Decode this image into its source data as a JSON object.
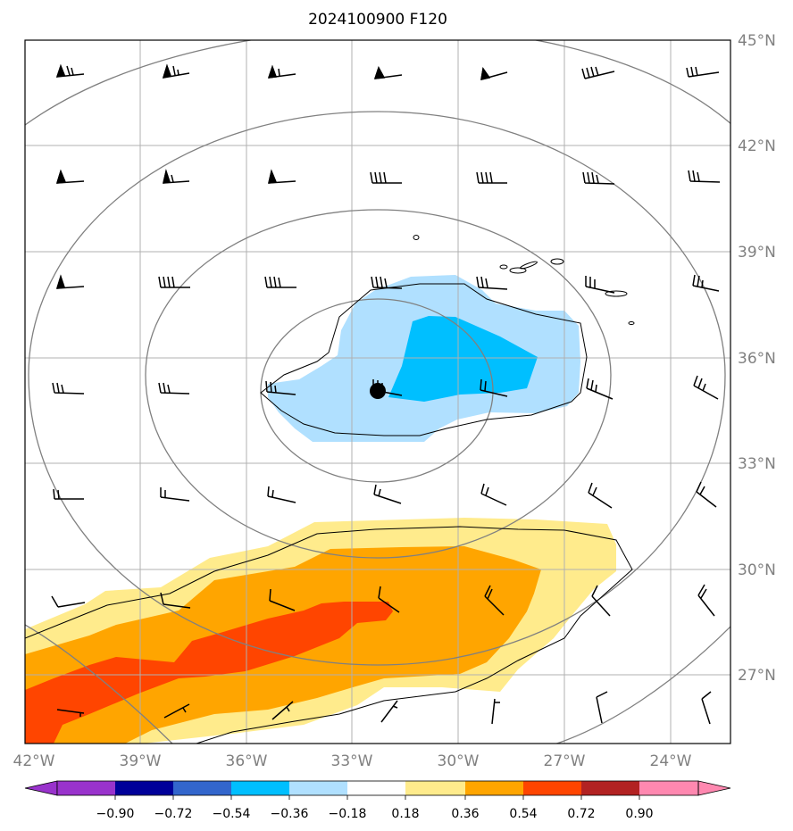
{
  "title": "2024100900 F120",
  "map": {
    "lon_labels": [
      "42°W",
      "39°W",
      "36°W",
      "33°W",
      "30°W",
      "27°W",
      "24°W"
    ],
    "lat_labels": [
      "45°N",
      "42°N",
      "39°N",
      "36°N",
      "33°N",
      "30°N",
      "27°N"
    ],
    "lon_values": [
      -42,
      -39,
      -36,
      -33,
      -30,
      -27,
      -24
    ],
    "lat_values": [
      45,
      42,
      39,
      36,
      33,
      30,
      27
    ],
    "extent": {
      "lon": [
        -42,
        -22
      ],
      "lat": [
        25,
        45
      ]
    },
    "gridlines": true,
    "center_marker": {
      "lon": -32.3,
      "lat": 35.0
    }
  },
  "colorbar": {
    "tick_labels": [
      "−0.90",
      "−0.72",
      "−0.54",
      "−0.36",
      "−0.18",
      "0.18",
      "0.36",
      "0.54",
      "0.72",
      "0.90"
    ],
    "colors": [
      "#9933cc",
      "#000099",
      "#3366cc",
      "#00bfff",
      "#b0e0ff",
      "#ffffff",
      "#ffeb8c",
      "#ffa500",
      "#ff4500",
      "#b22222",
      "#ff88b0",
      "#ff88b0"
    ],
    "under_color": "#9933cc",
    "over_color": "#ff88b0"
  },
  "colors": {
    "contour_gray": "#808080",
    "contour_black": "#000000",
    "light_blue": "#b0e0ff",
    "deep_sky": "#00bfff",
    "light_yellow": "#ffeb8c",
    "orange": "#ffa500",
    "red_orange": "#ff4500"
  }
}
